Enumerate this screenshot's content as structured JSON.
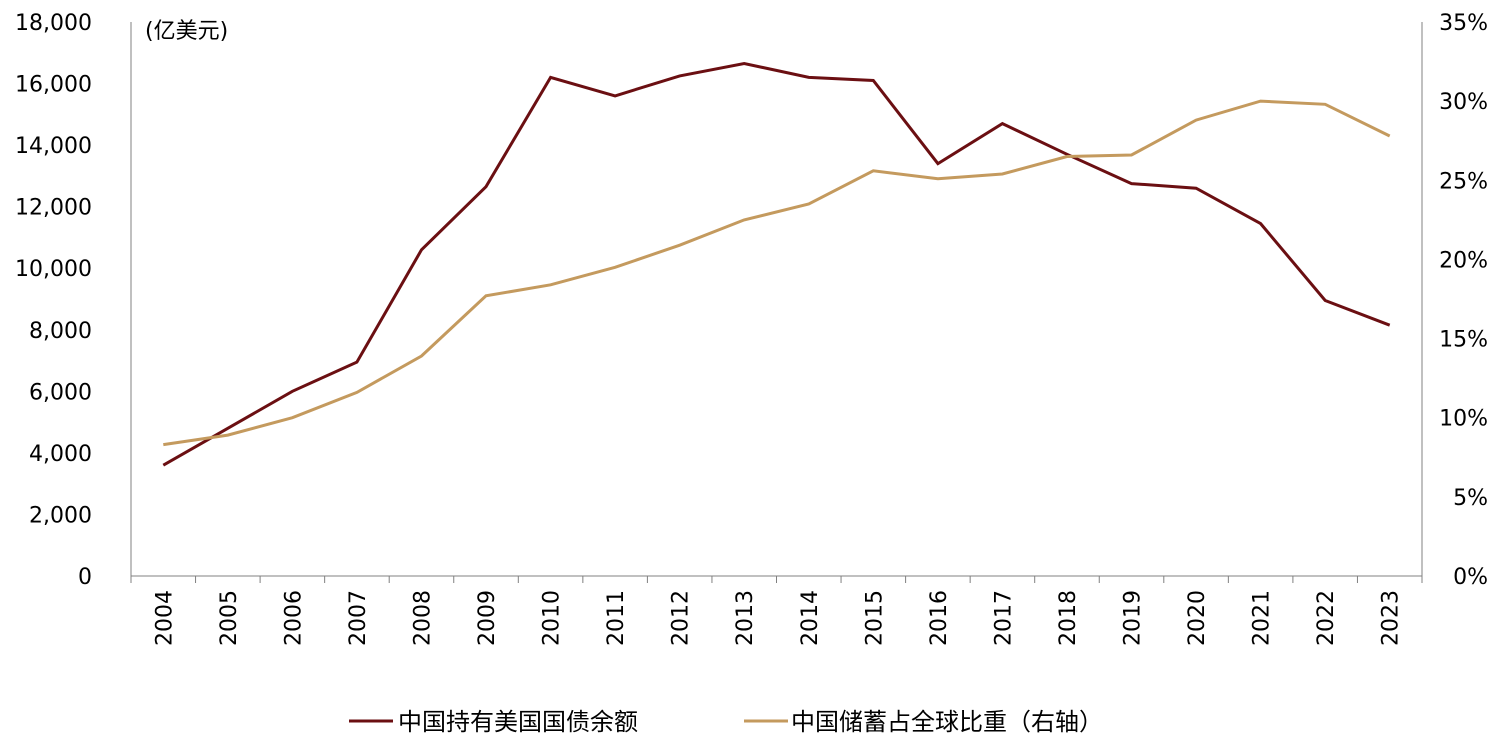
{
  "chart_data": {
    "type": "line",
    "unit_label": "(亿美元)",
    "categories": [
      "2004",
      "2005",
      "2006",
      "2007",
      "2008",
      "2009",
      "2010",
      "2011",
      "2012",
      "2013",
      "2014",
      "2015",
      "2016",
      "2017",
      "2018",
      "2019",
      "2020",
      "2021",
      "2022",
      "2023"
    ],
    "left_axis": {
      "min": 0,
      "max": 18000,
      "ticks": [
        0,
        2000,
        4000,
        6000,
        8000,
        10000,
        12000,
        14000,
        16000,
        18000
      ],
      "tick_labels": [
        "0",
        "2,000",
        "4,000",
        "6,000",
        "8,000",
        "10,000",
        "12,000",
        "14,000",
        "16,000",
        "18,000"
      ]
    },
    "right_axis": {
      "min": 0,
      "max": 35,
      "ticks": [
        0,
        5,
        10,
        15,
        20,
        25,
        30,
        35
      ],
      "tick_labels": [
        "0%",
        "5%",
        "10%",
        "15%",
        "20%",
        "25%",
        "30%",
        "35%"
      ]
    },
    "series": [
      {
        "name": "中国持有美国国债余额",
        "axis": "left",
        "color": "#6B0F12",
        "values": [
          3600,
          4800,
          6000,
          6950,
          10600,
          12650,
          16200,
          15600,
          16250,
          16650,
          16200,
          16100,
          13400,
          14700,
          13700,
          12750,
          12600,
          11450,
          8950,
          8150
        ]
      },
      {
        "name": "中国储蓄占全球比重（右轴）",
        "axis": "right",
        "color": "#C49A5E",
        "values": [
          8.3,
          8.9,
          10.0,
          11.6,
          13.9,
          17.7,
          18.4,
          19.5,
          20.9,
          22.5,
          23.5,
          25.6,
          25.1,
          25.4,
          26.5,
          26.6,
          28.8,
          30.0,
          29.8,
          27.8
        ]
      }
    ],
    "legend_position": "bottom"
  }
}
